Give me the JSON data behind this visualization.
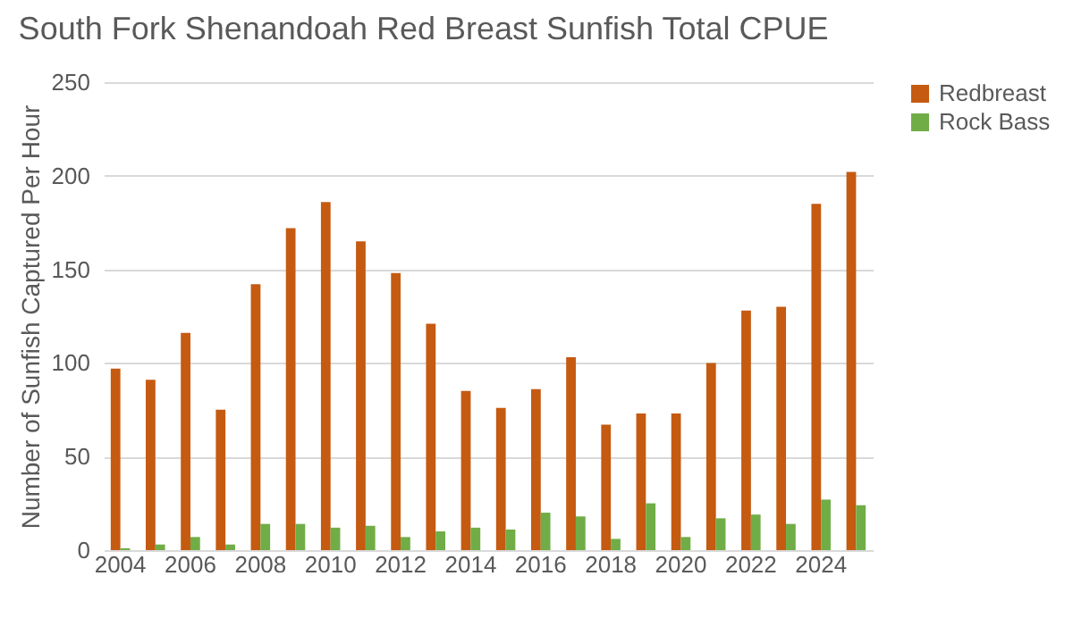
{
  "chart_data": {
    "type": "bar",
    "title": "South Fork Shenandoah Red Breast Sunfish Total CPUE",
    "ylabel": "Number of Sunfish Captured Per Hour",
    "categories": [
      "2004",
      null,
      "2006",
      null,
      "2008",
      null,
      "2010",
      null,
      "2012",
      null,
      "2014",
      null,
      "2016",
      null,
      "2018",
      null,
      "2020",
      null,
      "2022",
      null,
      "2024",
      null
    ],
    "series": [
      {
        "name": "Redbreast",
        "color": "#c55a11",
        "values": [
          97,
          91,
          116,
          75,
          142,
          172,
          186,
          165,
          148,
          121,
          85,
          76,
          86,
          103,
          67,
          73,
          73,
          100,
          128,
          130,
          185,
          202
        ]
      },
      {
        "name": "Rock Bass",
        "color": "#70ad47",
        "values": [
          1,
          3,
          7,
          3,
          14,
          14,
          12,
          13,
          7,
          10,
          12,
          11,
          20,
          18,
          6,
          25,
          7,
          17,
          19,
          14,
          27,
          24
        ]
      }
    ],
    "ylim": [
      0,
      250
    ],
    "yticks": [
      0,
      50,
      100,
      150,
      200,
      250
    ],
    "grid": "y",
    "legend": "right"
  }
}
